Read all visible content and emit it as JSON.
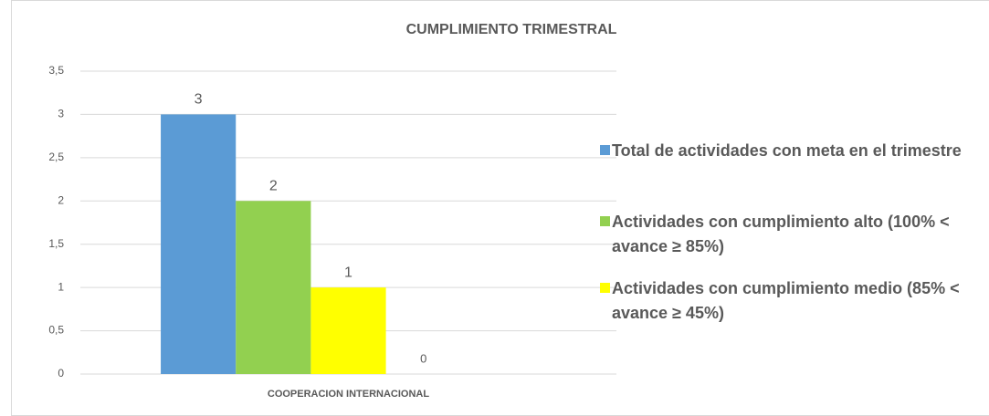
{
  "chart_data": {
    "type": "bar",
    "title": "CUMPLIMIENTO TRIMESTRAL",
    "categories": [
      "COOPERACION INTERNACIONAL"
    ],
    "series": [
      {
        "name": "Total de actividades con meta en el trimestre",
        "color": "#5b9bd5",
        "values": [
          3
        ]
      },
      {
        "name": "Actividades con cumplimiento alto (100% < avance ≥ 85%)",
        "color": "#92d050",
        "values": [
          2
        ]
      },
      {
        "name": "Actividades con cumplimiento medio (85% < avance ≥ 45%)",
        "color": "#ffff00",
        "values": [
          1
        ]
      },
      {
        "values": [
          0
        ]
      }
    ],
    "ylim": [
      0,
      3.5
    ],
    "yticks": [
      0,
      {
        "value": 0.5,
        "label": "0,5"
      },
      1,
      {
        "value": 1.5,
        "label": "1,5"
      },
      2,
      {
        "value": 2.5,
        "label": "2,5"
      },
      3,
      {
        "value": 3.5,
        "label": "3,5"
      }
    ],
    "grid": true,
    "legend": "right"
  }
}
